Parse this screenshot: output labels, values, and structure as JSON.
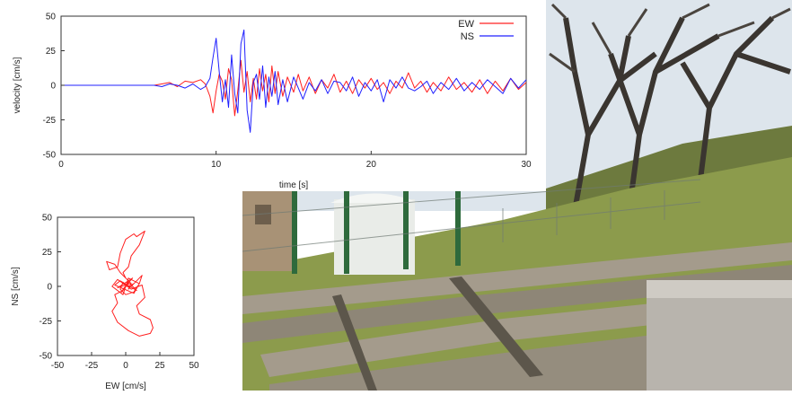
{
  "chart_data": [
    {
      "type": "line",
      "xlabel": "time [s]",
      "ylabel": "velocity [cm/s]",
      "xlim": [
        0,
        30
      ],
      "ylim": [
        -50,
        50
      ],
      "xticks": [
        "0",
        "10",
        "20",
        "30"
      ],
      "yticks": [
        "50",
        "25",
        "0",
        "-25",
        "-50"
      ],
      "grid": false,
      "legend": "top-right",
      "series": [
        {
          "name": "EW",
          "color": "#ff2020",
          "x": [
            0,
            6,
            6.5,
            7,
            7.5,
            8,
            8.5,
            9,
            9.3,
            9.6,
            9.8,
            10,
            10.2,
            10.4,
            10.6,
            10.8,
            11,
            11.2,
            11.4,
            11.6,
            11.8,
            12,
            12.2,
            12.4,
            12.6,
            12.8,
            13,
            13.2,
            13.4,
            13.6,
            13.8,
            14,
            14.3,
            14.6,
            15,
            15.3,
            15.6,
            16,
            16.4,
            16.8,
            17.2,
            17.6,
            18,
            18.4,
            18.8,
            19.2,
            19.6,
            20,
            20.4,
            20.8,
            21.2,
            21.6,
            22,
            22.4,
            22.8,
            23.2,
            23.6,
            24,
            24.5,
            25,
            25.5,
            26,
            26.5,
            27,
            27.5,
            28,
            28.5,
            29,
            29.5,
            30
          ],
          "y": [
            0,
            0,
            1,
            2,
            -1,
            3,
            2,
            4,
            1,
            -8,
            -20,
            -4,
            8,
            3,
            -10,
            12,
            4,
            -22,
            -4,
            18,
            -5,
            10,
            -12,
            5,
            -10,
            12,
            -4,
            8,
            -12,
            14,
            -6,
            10,
            -8,
            6,
            -5,
            8,
            -4,
            6,
            -6,
            4,
            -2,
            8,
            -5,
            3,
            -6,
            4,
            -2,
            5,
            -3,
            2,
            -6,
            3,
            -2,
            9,
            -2,
            3,
            -5,
            2,
            -4,
            6,
            -3,
            2,
            -5,
            4,
            -6,
            3,
            -4,
            5,
            -3,
            2
          ]
        },
        {
          "name": "NS",
          "color": "#2020ff",
          "x": [
            0,
            6,
            6.5,
            7,
            7.5,
            8,
            8.5,
            9,
            9.3,
            9.6,
            9.8,
            10,
            10.2,
            10.4,
            10.6,
            10.8,
            11,
            11.2,
            11.4,
            11.6,
            11.8,
            12,
            12.2,
            12.4,
            12.6,
            12.8,
            13,
            13.2,
            13.4,
            13.6,
            13.8,
            14,
            14.3,
            14.6,
            15,
            15.3,
            15.6,
            16,
            16.4,
            16.8,
            17.2,
            17.6,
            18,
            18.4,
            18.8,
            19.2,
            19.6,
            20,
            20.4,
            20.8,
            21.2,
            21.6,
            22,
            22.4,
            22.8,
            23.2,
            23.6,
            24,
            24.5,
            25,
            25.5,
            26,
            26.5,
            27,
            27.5,
            28,
            28.5,
            29,
            29.5,
            30
          ],
          "y": [
            0,
            0,
            -1,
            1,
            0,
            -2,
            1,
            -3,
            -1,
            5,
            20,
            34,
            10,
            -12,
            4,
            -16,
            22,
            -6,
            -20,
            30,
            40,
            -18,
            -34,
            2,
            8,
            -10,
            14,
            -16,
            6,
            -8,
            10,
            -14,
            4,
            -12,
            6,
            -2,
            -10,
            2,
            -4,
            4,
            -6,
            3,
            2,
            -4,
            6,
            -8,
            2,
            -4,
            4,
            -12,
            4,
            -2,
            6,
            -2,
            -4,
            -1,
            3,
            -6,
            2,
            -3,
            5,
            -4,
            2,
            -3,
            4,
            -1,
            -6,
            5,
            -2,
            4
          ]
        }
      ]
    },
    {
      "type": "line",
      "xlabel": "EW [cm/s]",
      "ylabel": "NS [cm/s]",
      "xlim": [
        -50,
        50
      ],
      "ylim": [
        -50,
        50
      ],
      "xticks": [
        "-50",
        "-25",
        "0",
        "25",
        "50"
      ],
      "yticks": [
        "50",
        "25",
        "0",
        "-25",
        "-50"
      ],
      "grid": false,
      "series": [
        {
          "color": "#ff2020",
          "x": [
            0,
            2,
            -3,
            4,
            -2,
            5,
            -6,
            3,
            8,
            -4,
            -8,
            6,
            10,
            2,
            -2,
            -10,
            -6,
            4,
            12,
            14,
            8,
            10,
            18,
            20,
            18,
            10,
            2,
            -6,
            -10,
            -6,
            -8,
            -2,
            2,
            -4,
            -8,
            -14,
            -12,
            -6,
            -4,
            0,
            6,
            8,
            14,
            10,
            4,
            2,
            -2,
            0,
            4,
            2,
            8,
            12,
            10,
            6,
            0,
            -4,
            -2,
            3,
            6,
            2,
            0
          ],
          "y": [
            0,
            3,
            -4,
            5,
            -2,
            6,
            -1,
            2,
            -3,
            4,
            1,
            -5,
            2,
            6,
            -6,
            0,
            5,
            -2,
            1,
            -8,
            -14,
            -20,
            -24,
            -30,
            -34,
            -36,
            -32,
            -26,
            -18,
            -12,
            -6,
            -3,
            4,
            10,
            16,
            18,
            12,
            14,
            24,
            34,
            38,
            36,
            40,
            30,
            22,
            14,
            10,
            6,
            2,
            -2,
            4,
            8,
            2,
            -4,
            -6,
            -2,
            3,
            -1,
            2,
            0,
            0
          ]
        }
      ]
    }
  ],
  "photo_alt_colors": {
    "sky": "#dfe6ec",
    "grass": "#8a9a4a",
    "concrete": "#9a9184",
    "fence_post": "#2e6a3c",
    "shelter": "#e9ece8"
  }
}
